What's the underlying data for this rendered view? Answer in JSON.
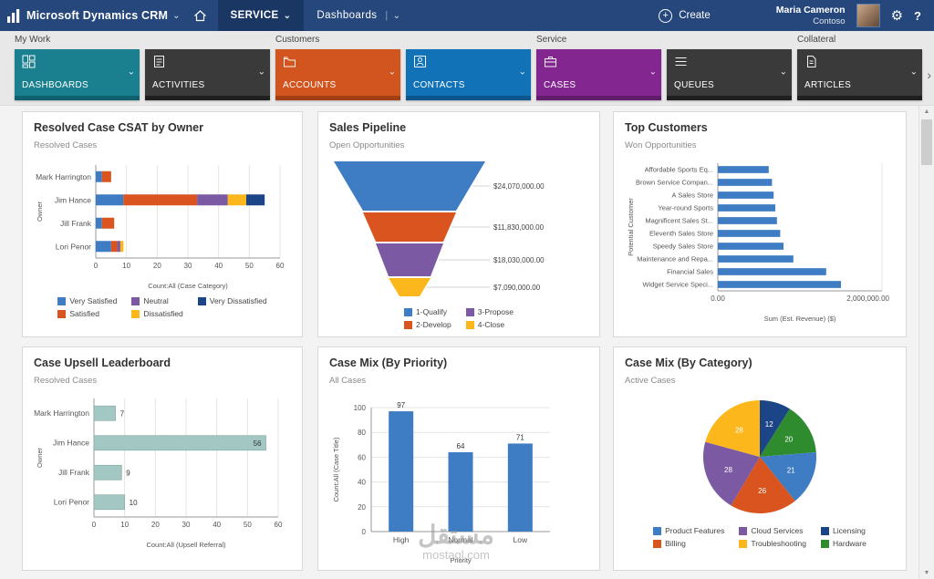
{
  "topnav": {
    "brand": "Microsoft Dynamics CRM",
    "service_tab": "SERVICE",
    "dashboards_tab": "Dashboards",
    "create_label": "Create",
    "user_name": "Maria Cameron",
    "user_org": "Contoso",
    "help_label": "?"
  },
  "icons": {
    "chevron_down": "⌄",
    "chevron_right": "›",
    "separator": "|",
    "plus": "+",
    "gear": "⚙",
    "scroll_up": "▲",
    "scroll_down": "▼"
  },
  "ribbon": {
    "categories": [
      "My Work",
      "Customers",
      "Service",
      "Collateral"
    ],
    "tiles": [
      {
        "label": "DASHBOARDS",
        "color": "#1a7f8e",
        "strip": "#10616e",
        "icon": "dashboards-icon"
      },
      {
        "label": "ACTIVITIES",
        "color": "#3a3a3a",
        "strip": "#1f1f1f",
        "icon": "activities-icon"
      },
      {
        "label": "ACCOUNTS",
        "color": "#d2541e",
        "strip": "#a43f14",
        "icon": "accounts-icon"
      },
      {
        "label": "CONTACTS",
        "color": "#1272b8",
        "strip": "#0c568d",
        "icon": "contacts-icon"
      },
      {
        "label": "CASES",
        "color": "#83268f",
        "strip": "#631b6c",
        "icon": "cases-icon"
      },
      {
        "label": "QUEUES",
        "color": "#3a3a3a",
        "strip": "#1f1f1f",
        "icon": "queues-icon"
      },
      {
        "label": "ARTICLES",
        "color": "#3a3a3a",
        "strip": "#1f1f1f",
        "icon": "articles-icon"
      }
    ]
  },
  "dashboard": {
    "panels": [
      {
        "title": "Resolved Case CSAT by Owner",
        "subtitle": "Resolved Cases",
        "chart": {
          "type": "stacked_bar_h",
          "categories": [
            "Mark Harrington",
            "Jim Hance",
            "Jill Frank",
            "Lori Penor"
          ],
          "series": [
            {
              "name": "Very Satisfied",
              "color": "#3e7dc4",
              "values": [
                2,
                9,
                2,
                5
              ]
            },
            {
              "name": "Satisfied",
              "color": "#d9541e",
              "values": [
                3,
                24,
                4,
                2
              ]
            },
            {
              "name": "Neutral",
              "color": "#7b5aa3",
              "values": [
                0,
                10,
                0,
                1
              ]
            },
            {
              "name": "Dissatisfied",
              "color": "#fcb71c",
              "values": [
                0,
                6,
                0,
                1
              ]
            },
            {
              "name": "Very Dissatisfied",
              "color": "#1c4587",
              "values": [
                0,
                6,
                0,
                0
              ]
            }
          ],
          "xmax": 60,
          "xtick": 10,
          "xlabel": "Count:All (Case Category)",
          "ylabel": "Owner",
          "legend_items": [
            {
              "label": "Very Satisfied",
              "color": "#3e7dc4"
            },
            {
              "label": "Satisfied",
              "color": "#d9541e"
            },
            {
              "label": "Neutral",
              "color": "#7b5aa3"
            },
            {
              "label": "Dissatisfied",
              "color": "#fcb71c"
            },
            {
              "label": "Very Dissatisfied",
              "color": "#1c4587"
            }
          ]
        }
      },
      {
        "title": "Sales Pipeline",
        "subtitle": "Open Opportunities",
        "chart": {
          "type": "funnel",
          "segments": [
            {
              "name": "1-Qualify",
              "color": "#3e7dc4",
              "label": "$24,070,000.00"
            },
            {
              "name": "2-Develop",
              "color": "#d9541e",
              "label": "$11,830,000.00"
            },
            {
              "name": "3-Propose",
              "color": "#7b5aa3",
              "label": "$18,030,000.00"
            },
            {
              "name": "4-Close",
              "color": "#fcb71c",
              "label": "$7,090,000.00"
            }
          ],
          "legend_items": [
            {
              "label": "1-Qualify",
              "color": "#3e7dc4"
            },
            {
              "label": "2-Develop",
              "color": "#d9541e"
            },
            {
              "label": "3-Propose",
              "color": "#7b5aa3"
            },
            {
              "label": "4-Close",
              "color": "#fcb71c"
            }
          ]
        }
      },
      {
        "title": "Top Customers",
        "subtitle": "Won Opportunities",
        "chart": {
          "type": "bar_h",
          "color": "#3e7dc4",
          "categories": [
            "Affordable Sports Eq...",
            "Brown Service Compan...",
            "A Sales Store",
            "Year-round Sports",
            "Magnificent Sales St...",
            "Eleventh Sales Store",
            "Speedy Sales Store",
            "Maintenance and Repa...",
            "Financial Sales",
            "Widget Service Speci..."
          ],
          "values": [
            620000,
            660000,
            680000,
            700000,
            720000,
            760000,
            800000,
            920000,
            1320000,
            1500000
          ],
          "xmax": 2000000,
          "xticks": [
            {
              "v": 0,
              "label": "0.00"
            },
            {
              "v": 2000000,
              "label": "2,000,000.00"
            }
          ],
          "xlabel": "Sum (Est. Revenue) ($)",
          "ylabel": "Potential Customer"
        }
      },
      {
        "title": "Case Upsell Leaderboard",
        "subtitle": "Resolved Cases",
        "chart": {
          "type": "bar_h",
          "color": "#a3c7c2",
          "border": "#86aca6",
          "show_values": true,
          "categories": [
            "Mark Harrington",
            "Jim Hance",
            "Jill Frank",
            "Lori Penor"
          ],
          "values": [
            7,
            56,
            9,
            10
          ],
          "xmax": 60,
          "xtick": 10,
          "xlabel": "Count:All (Upsell Referral)",
          "ylabel": "Owner"
        }
      },
      {
        "title": "Case Mix (By Priority)",
        "subtitle": "All Cases",
        "chart": {
          "type": "bar_v",
          "color": "#3e7dc4",
          "show_values": true,
          "categories": [
            "High",
            "Normal",
            "Low"
          ],
          "values": [
            97,
            64,
            71
          ],
          "ymax": 100,
          "ytick": 20,
          "xlabel": "Priority",
          "ylabel": "Count:All (Case Title)"
        }
      },
      {
        "title": "Case Mix (By Category)",
        "subtitle": "Active Cases",
        "chart": {
          "type": "pie",
          "show_values": true,
          "slices": [
            {
              "name": "Licensing",
              "color": "#1c4587",
              "value": 12
            },
            {
              "name": "Hardware",
              "color": "#2e8b2e",
              "value": 20
            },
            {
              "name": "Product Features",
              "color": "#3e7dc4",
              "value": 21
            },
            {
              "name": "Billing",
              "color": "#d9541e",
              "value": 26
            },
            {
              "name": "Cloud Services",
              "color": "#7b5aa3",
              "value": 28
            },
            {
              "name": "Troubleshooting",
              "color": "#fcb71c",
              "value": 28
            }
          ],
          "legend_items": [
            {
              "label": "Product Features",
              "color": "#3e7dc4"
            },
            {
              "label": "Billing",
              "color": "#d9541e"
            },
            {
              "label": "Cloud Services",
              "color": "#7b5aa3"
            },
            {
              "label": "Troubleshooting",
              "color": "#fcb71c"
            },
            {
              "label": "Licensing",
              "color": "#1c4587"
            },
            {
              "label": "Hardware",
              "color": "#2e8b2e"
            }
          ]
        }
      }
    ]
  },
  "watermark": {
    "line1": "مستقل",
    "line2": "mostaql.com"
  }
}
